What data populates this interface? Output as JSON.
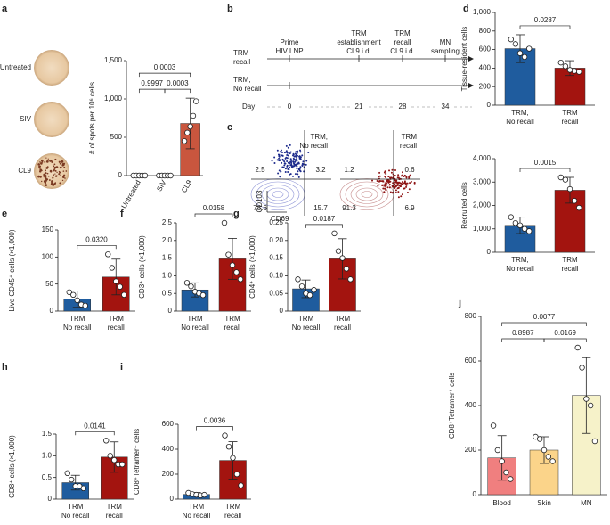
{
  "chart_data": [
    {
      "panel": "a",
      "type": "bar",
      "ylabel": "# of spots per 10⁶ cells",
      "categories": [
        "Untreated",
        "SIV",
        "CL9"
      ],
      "values": [
        0,
        0,
        680
      ],
      "errors": [
        0,
        0,
        330
      ],
      "points": [
        [
          0,
          0,
          0,
          0,
          0
        ],
        [
          0,
          0,
          0,
          0,
          0
        ],
        [
          450,
          560,
          640,
          780,
          970
        ]
      ],
      "colors": [
        "#c9563e",
        "#c9563e",
        "#c9563e"
      ],
      "ylim": [
        0,
        1500
      ],
      "yticks": [
        0,
        500,
        {
          "value": 1000,
          "label": "1,000"
        },
        {
          "value": 1500,
          "label": "1,500"
        }
      ],
      "comparisons": [
        {
          "from": "Untreated",
          "to": "SIV",
          "p": "0.9997"
        },
        {
          "from": "SIV",
          "to": "CL9",
          "p": "0.0003"
        },
        {
          "from": "Untreated",
          "to": "CL9",
          "p": "0.0003"
        }
      ]
    },
    {
      "panel": "b",
      "type": "timeline",
      "rows": [
        [
          "TRM",
          "recall"
        ],
        [
          "TRM,",
          "No recall"
        ]
      ],
      "events": [
        [
          "Prime",
          "HIV LNP"
        ],
        [
          "TRM",
          "establishment",
          "CL9 i.d."
        ],
        [
          "TRM",
          "recall",
          "CL9 i.d."
        ],
        [
          "MN",
          "sampling"
        ]
      ],
      "day_label": "Day",
      "days": [
        0,
        21,
        28,
        34
      ]
    },
    {
      "panel": "c",
      "type": "flow",
      "ylabel": "CD103",
      "xlabel": "CD69",
      "plots": [
        {
          "title": [
            "TRM,",
            "No recall"
          ],
          "quadrants": [
            2.5,
            3.2,
            78.6,
            15.7
          ],
          "color": "#1c2a8c"
        },
        {
          "title": [
            "TRM",
            "recall"
          ],
          "quadrants": [
            1.2,
            0.6,
            91.3,
            6.9
          ],
          "color": "#8e1414"
        }
      ]
    },
    {
      "panel": "d",
      "type": "bar",
      "ylabel": "Tissue-resident cells",
      "categories": [
        [
          "TRM,",
          "No recall"
        ],
        [
          "TRM",
          "recall"
        ]
      ],
      "values": [
        610,
        400
      ],
      "errors": [
        150,
        80
      ],
      "points": [
        [
          710,
          660,
          560,
          520,
          610
        ],
        [
          460,
          420,
          380,
          370,
          360
        ]
      ],
      "colors": [
        "#1f5c9e",
        "#a3140f"
      ],
      "ylim": [
        0,
        1000
      ],
      "yticks": [
        0,
        200,
        400,
        600,
        800,
        {
          "value": 1000,
          "label": "1,000"
        }
      ],
      "p": "0.0287"
    },
    {
      "type": "bar",
      "ylabel": "Recruited cells",
      "categories": [
        [
          "TRM,",
          "No recall"
        ],
        [
          "TRM",
          "recall"
        ]
      ],
      "values": [
        1150,
        2650
      ],
      "errors": [
        350,
        550
      ],
      "points": [
        [
          1500,
          1250,
          1150,
          1000,
          900
        ],
        [
          3200,
          3100,
          2700,
          2200,
          1900
        ]
      ],
      "colors": [
        "#1f5c9e",
        "#a3140f"
      ],
      "ylim": [
        0,
        4000
      ],
      "yticks": [
        0,
        {
          "value": 1000,
          "label": "1,000"
        },
        {
          "value": 2000,
          "label": "2,000"
        },
        {
          "value": 3000,
          "label": "3,000"
        },
        {
          "value": 4000,
          "label": "4,000"
        }
      ],
      "p": "0.0015"
    },
    {
      "panel": "e",
      "type": "bar",
      "ylabel": "Live CD45⁺ cells (×1,000)",
      "categories": [
        [
          "TRM",
          "No recall"
        ],
        [
          "TRM",
          "recall"
        ]
      ],
      "values": [
        22,
        63
      ],
      "errors": [
        15,
        33
      ],
      "points": [
        [
          35,
          30,
          20,
          12,
          10
        ],
        [
          105,
          80,
          55,
          45,
          30
        ]
      ],
      "colors": [
        "#1f5c9e",
        "#a3140f"
      ],
      "ylim": [
        0,
        150
      ],
      "yticks": [
        0,
        50,
        100,
        150
      ],
      "p": "0.0320"
    },
    {
      "panel": "f",
      "type": "bar",
      "ylabel": "CD3⁺ cells (×1,000)",
      "categories": [
        [
          "TRM",
          "No recall"
        ],
        [
          "TRM",
          "recall"
        ]
      ],
      "values": [
        0.6,
        1.48
      ],
      "errors": [
        0.2,
        0.58
      ],
      "points": [
        [
          0.8,
          0.7,
          0.55,
          0.5,
          0.45
        ],
        [
          2.5,
          1.6,
          1.3,
          1.1,
          0.9
        ]
      ],
      "colors": [
        "#1f5c9e",
        "#a3140f"
      ],
      "ylim": [
        0,
        2.5
      ],
      "yticks": [
        0,
        0.5,
        {
          "value": 1,
          "label": "1.0"
        },
        1.5,
        {
          "value": 2,
          "label": "2.0"
        },
        2.5
      ],
      "p": "0.0158"
    },
    {
      "panel": "g",
      "type": "bar",
      "ylabel": "CD4⁺ cells (×1,000)",
      "categories": [
        [
          "TRM",
          "No recall"
        ],
        [
          "TRM",
          "recall"
        ]
      ],
      "values": [
        0.063,
        0.148
      ],
      "errors": [
        0.025,
        0.057
      ],
      "points": [
        [
          0.09,
          0.07,
          0.05,
          0.045,
          0.06
        ],
        [
          0.22,
          0.17,
          0.15,
          0.12,
          0.09
        ]
      ],
      "colors": [
        "#1f5c9e",
        "#a3140f"
      ],
      "ylim": [
        0,
        0.25
      ],
      "yticks": [
        0,
        0.05,
        {
          "value": 0.1,
          "label": "0.10"
        },
        0.15,
        {
          "value": 0.2,
          "label": "0.20"
        },
        0.25
      ],
      "p": "0.0187"
    },
    {
      "panel": "h",
      "type": "bar",
      "ylabel": "CD8⁺ cells (×1,000)",
      "categories": [
        [
          "TRM",
          "No recall"
        ],
        [
          "TRM",
          "recall"
        ]
      ],
      "values": [
        0.38,
        0.97
      ],
      "errors": [
        0.17,
        0.35
      ],
      "points": [
        [
          0.6,
          0.45,
          0.3,
          0.3,
          0.25
        ],
        [
          1.35,
          1.0,
          0.9,
          0.8,
          0.8
        ]
      ],
      "colors": [
        "#1f5c9e",
        "#a3140f"
      ],
      "ylim": [
        0,
        1.5
      ],
      "yticks": [
        0,
        0.5,
        {
          "value": 1,
          "label": "1.0"
        },
        1.5
      ],
      "p": "0.0141"
    },
    {
      "panel": "i",
      "type": "bar",
      "ylabel": "CD8⁺Tetramer⁺ cells",
      "categories": [
        [
          "TRM",
          "No recall"
        ],
        [
          "TRM",
          "recall"
        ]
      ],
      "values": [
        38,
        310
      ],
      "errors": [
        15,
        150
      ],
      "points": [
        [
          50,
          40,
          35,
          30,
          35
        ],
        [
          510,
          420,
          330,
          200,
          110
        ]
      ],
      "colors": [
        "#1f5c9e",
        "#a3140f"
      ],
      "ylim": [
        0,
        600
      ],
      "yticks": [
        0,
        200,
        400,
        600
      ],
      "p": "0.0036"
    },
    {
      "panel": "j",
      "type": "bar",
      "ylabel": "CD8⁺Tetramer⁺ cells",
      "categories": [
        "Blood",
        "Skin",
        "MN"
      ],
      "values": [
        165,
        200,
        445
      ],
      "errors": [
        100,
        60,
        170
      ],
      "points": [
        [
          310,
          200,
          150,
          100,
          70
        ],
        [
          260,
          250,
          200,
          170,
          150
        ],
        [
          660,
          570,
          430,
          400,
          240
        ]
      ],
      "colors": [
        "#f07f7f",
        "#fbd48a",
        "#f6f2c9"
      ],
      "ylim": [
        0,
        800
      ],
      "yticks": [
        0,
        200,
        400,
        600,
        800
      ],
      "comparisons": [
        {
          "from": "Blood",
          "to": "Skin",
          "p": "0.8987"
        },
        {
          "from": "Skin",
          "to": "MN",
          "p": "0.0169"
        },
        {
          "from": "Blood",
          "to": "MN",
          "p": "0.0077"
        }
      ]
    }
  ]
}
